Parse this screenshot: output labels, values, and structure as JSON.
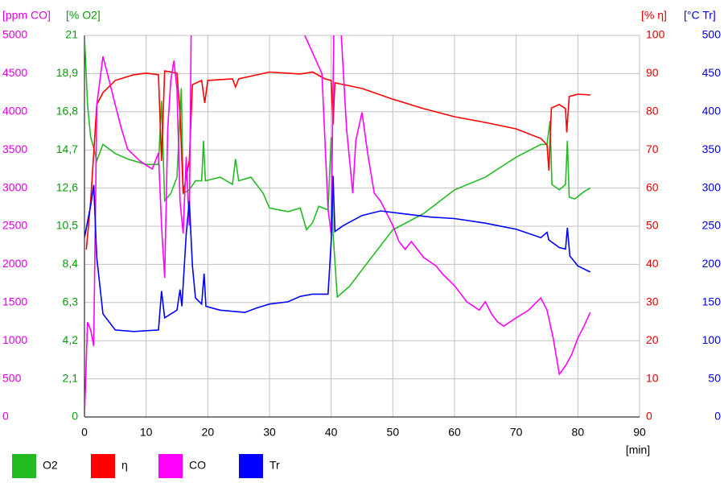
{
  "chart_data": {
    "type": "line",
    "x_label": "[min]",
    "xlim": [
      0,
      90
    ],
    "xticks": [
      0,
      10,
      20,
      30,
      40,
      50,
      60,
      70,
      80,
      90
    ],
    "grid": true,
    "legend": "bottom",
    "axes": [
      {
        "label": "[ppm CO]",
        "color": "#e000e0",
        "side": "left",
        "lim": [
          0,
          5000
        ],
        "ticks": [
          0,
          500,
          1000,
          1500,
          2000,
          2500,
          3000,
          3500,
          4000,
          4500,
          5000
        ]
      },
      {
        "label": "[% O2]",
        "color": "#00a000",
        "side": "left",
        "lim": [
          0,
          21
        ],
        "ticks": [
          0,
          {
            "value": 2.1,
            "label": "2,1"
          },
          {
            "value": 4.2,
            "label": "4,2"
          },
          {
            "value": 6.3,
            "label": "6,3"
          },
          {
            "value": 8.4,
            "label": "8,4"
          },
          {
            "value": 10.5,
            "label": "10,5"
          },
          {
            "value": 12.6,
            "label": "12,6"
          },
          {
            "value": 14.7,
            "label": "14,7"
          },
          {
            "value": 16.8,
            "label": "16,8"
          },
          {
            "value": 18.9,
            "label": "18,9"
          },
          21
        ]
      },
      {
        "label": "[% η]",
        "color": "#e00000",
        "side": "right",
        "lim": [
          0,
          100
        ],
        "ticks": [
          0,
          10,
          20,
          30,
          40,
          50,
          60,
          70,
          80,
          90,
          100
        ]
      },
      {
        "label": "[°C Tr]",
        "color": "#0000e0",
        "side": "right",
        "lim": [
          0,
          500
        ],
        "ticks": [
          0,
          50,
          100,
          150,
          200,
          250,
          300,
          350,
          400,
          450,
          500
        ]
      }
    ],
    "series": [
      {
        "name": "O2",
        "color": "#22bb22",
        "axis": 1,
        "x": [
          0,
          0.5,
          1,
          1.5,
          2,
          3,
          5,
          7,
          10,
          12,
          12.5,
          13,
          14,
          15,
          15.7,
          16,
          17,
          18,
          19,
          19.3,
          19.6,
          22,
          24,
          24.5,
          25,
          27,
          29,
          30,
          33,
          35,
          36,
          37,
          38,
          39.5,
          40,
          40.3,
          41,
          43,
          45,
          50,
          55,
          60,
          65,
          70,
          74,
          75,
          75.5,
          75.8,
          77,
          78,
          78.3,
          78.6,
          79.5,
          81,
          82
        ],
        "values": [
          21,
          17.2,
          15.4,
          14.8,
          14.1,
          15,
          14.5,
          14.2,
          13.9,
          13.9,
          17.4,
          11.9,
          12.3,
          13.2,
          18.1,
          12.3,
          12.5,
          13,
          13,
          15.2,
          13,
          13.2,
          12.8,
          14.2,
          13,
          13.2,
          12.3,
          11.5,
          11.3,
          11.5,
          10.3,
          10.7,
          11.6,
          11.4,
          15.4,
          10.1,
          6.6,
          7.2,
          8.1,
          10.3,
          11.2,
          12.5,
          13.2,
          14.3,
          15,
          15,
          16.3,
          12.8,
          12.5,
          12.8,
          15.2,
          12.1,
          12,
          12.4,
          12.6
        ]
      },
      {
        "name": "η",
        "color": "#ff0000",
        "axis": 2,
        "x": [
          0.3,
          1,
          2,
          3,
          5,
          8,
          10,
          12,
          12.5,
          13,
          15,
          15.5,
          16,
          17,
          17.5,
          19,
          19.5,
          20,
          24,
          24.5,
          25,
          30,
          35,
          37,
          39,
          40,
          40.3,
          40.6,
          45,
          50,
          55,
          60,
          65,
          70,
          74,
          75,
          75.3,
          75.7,
          77,
          78,
          78.2,
          78.6,
          80,
          82
        ],
        "values": [
          43.9,
          56.5,
          81.9,
          85,
          88.2,
          89.7,
          90.1,
          89.7,
          67.1,
          90.7,
          90.1,
          79.7,
          58.6,
          67.1,
          87.1,
          88.2,
          82.3,
          88.2,
          88.6,
          86.5,
          88.6,
          90.4,
          89.9,
          90.4,
          88.6,
          88.2,
          76.6,
          87.6,
          86.1,
          83.3,
          80.8,
          78.7,
          77.2,
          75.5,
          73,
          71.3,
          64.6,
          81,
          81.9,
          80.8,
          74.6,
          84,
          84.6,
          84.4
        ]
      },
      {
        "name": "CO",
        "color": "#ff00ff",
        "axis": 0,
        "x": [
          0,
          0.5,
          1,
          1.5,
          2,
          3,
          4,
          5,
          6,
          7,
          9,
          10,
          11,
          12,
          12.5,
          13,
          13.5,
          14,
          14.5,
          15,
          15.5,
          16,
          16.5,
          17,
          17.3,
          17.6,
          35,
          35.5,
          38.5,
          39.5,
          40,
          40.5,
          41.5,
          42.5,
          43,
          43.5,
          44,
          45,
          46,
          47,
          48,
          50,
          51,
          52,
          53,
          55,
          57,
          58,
          60,
          62,
          64,
          65,
          66,
          67,
          68,
          70,
          72,
          74,
          75,
          76,
          77,
          78,
          79,
          80,
          81,
          82
        ],
        "values": [
          0,
          1245,
          1140,
          930,
          4090,
          4725,
          4410,
          4090,
          3775,
          3510,
          3355,
          3300,
          3250,
          3460,
          2510,
          1825,
          3775,
          4410,
          4670,
          4300,
          2830,
          2405,
          3410,
          2510,
          5040,
          5500,
          5500,
          5040,
          4500,
          2720,
          2400,
          5500,
          5200,
          3775,
          3355,
          2930,
          3620,
          3990,
          3410,
          2930,
          2830,
          2510,
          2300,
          2195,
          2300,
          2090,
          1980,
          1880,
          1720,
          1510,
          1400,
          1510,
          1350,
          1245,
          1190,
          1300,
          1400,
          1560,
          1400,
          1035,
          560,
          670,
          820,
          1035,
          1190,
          1370
        ]
      },
      {
        "name": "Tr",
        "color": "#0000ff",
        "axis": 3,
        "x": [
          0,
          1,
          1.5,
          2,
          3,
          5,
          8,
          12,
          12.5,
          13,
          15,
          15.5,
          15.8,
          16.5,
          17,
          17.5,
          18,
          19,
          19.4,
          19.7,
          22,
          26,
          28,
          30,
          33,
          35,
          37,
          39.5,
          40,
          40.3,
          40.6,
          42,
          45,
          48,
          52,
          56,
          60,
          65,
          70,
          74,
          75,
          75.3,
          77,
          78,
          78.3,
          78.7,
          80,
          82
        ],
        "values": [
          235,
          277,
          304,
          209,
          135,
          114,
          112,
          114,
          165,
          130,
          140,
          167,
          145,
          240,
          283,
          198,
          156,
          148,
          188,
          145,
          140,
          137,
          143,
          148,
          151,
          158,
          161,
          161,
          230,
          316,
          243,
          251,
          264,
          270,
          266,
          262,
          260,
          254,
          246,
          235,
          242,
          232,
          222,
          220,
          248,
          211,
          198,
          190
        ]
      }
    ]
  }
}
